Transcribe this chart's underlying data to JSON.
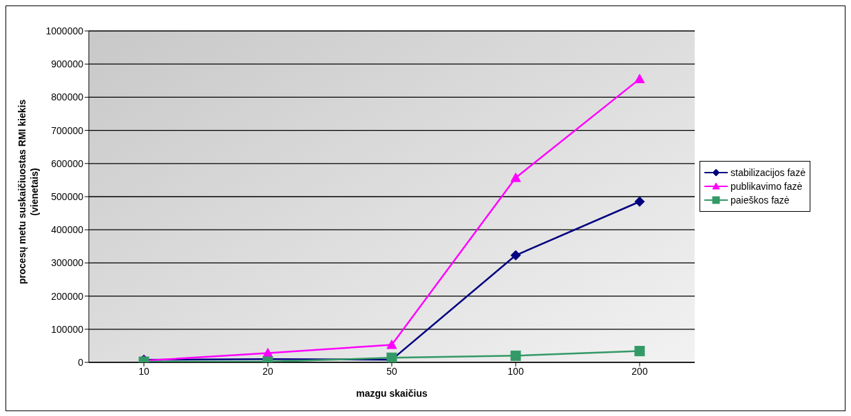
{
  "chart_data": {
    "type": "line",
    "xlabel": "mazgu skaičius",
    "ylabel": "procesų metu suskaičiuostas RMI kiekis (vienetais)",
    "categories": [
      "10",
      "20",
      "50",
      "100",
      "200"
    ],
    "series": [
      {
        "name": "stabilizacijos fazė",
        "color": "#000080",
        "marker": "diamond",
        "values": [
          8000,
          10000,
          8000,
          323000,
          485000
        ]
      },
      {
        "name": "publikavimo fazė",
        "color": "#ff00ff",
        "marker": "triangle",
        "values": [
          5000,
          28000,
          53000,
          557000,
          855000
        ]
      },
      {
        "name": "paieškos fazė",
        "color": "#339966",
        "marker": "square",
        "values": [
          2000,
          2000,
          14000,
          20000,
          34000
        ]
      }
    ],
    "ylim": [
      0,
      1000000
    ],
    "yticks": [
      0,
      100000,
      200000,
      300000,
      400000,
      500000,
      600000,
      700000,
      800000,
      900000,
      1000000
    ],
    "grid": "y",
    "legend": "right"
  }
}
